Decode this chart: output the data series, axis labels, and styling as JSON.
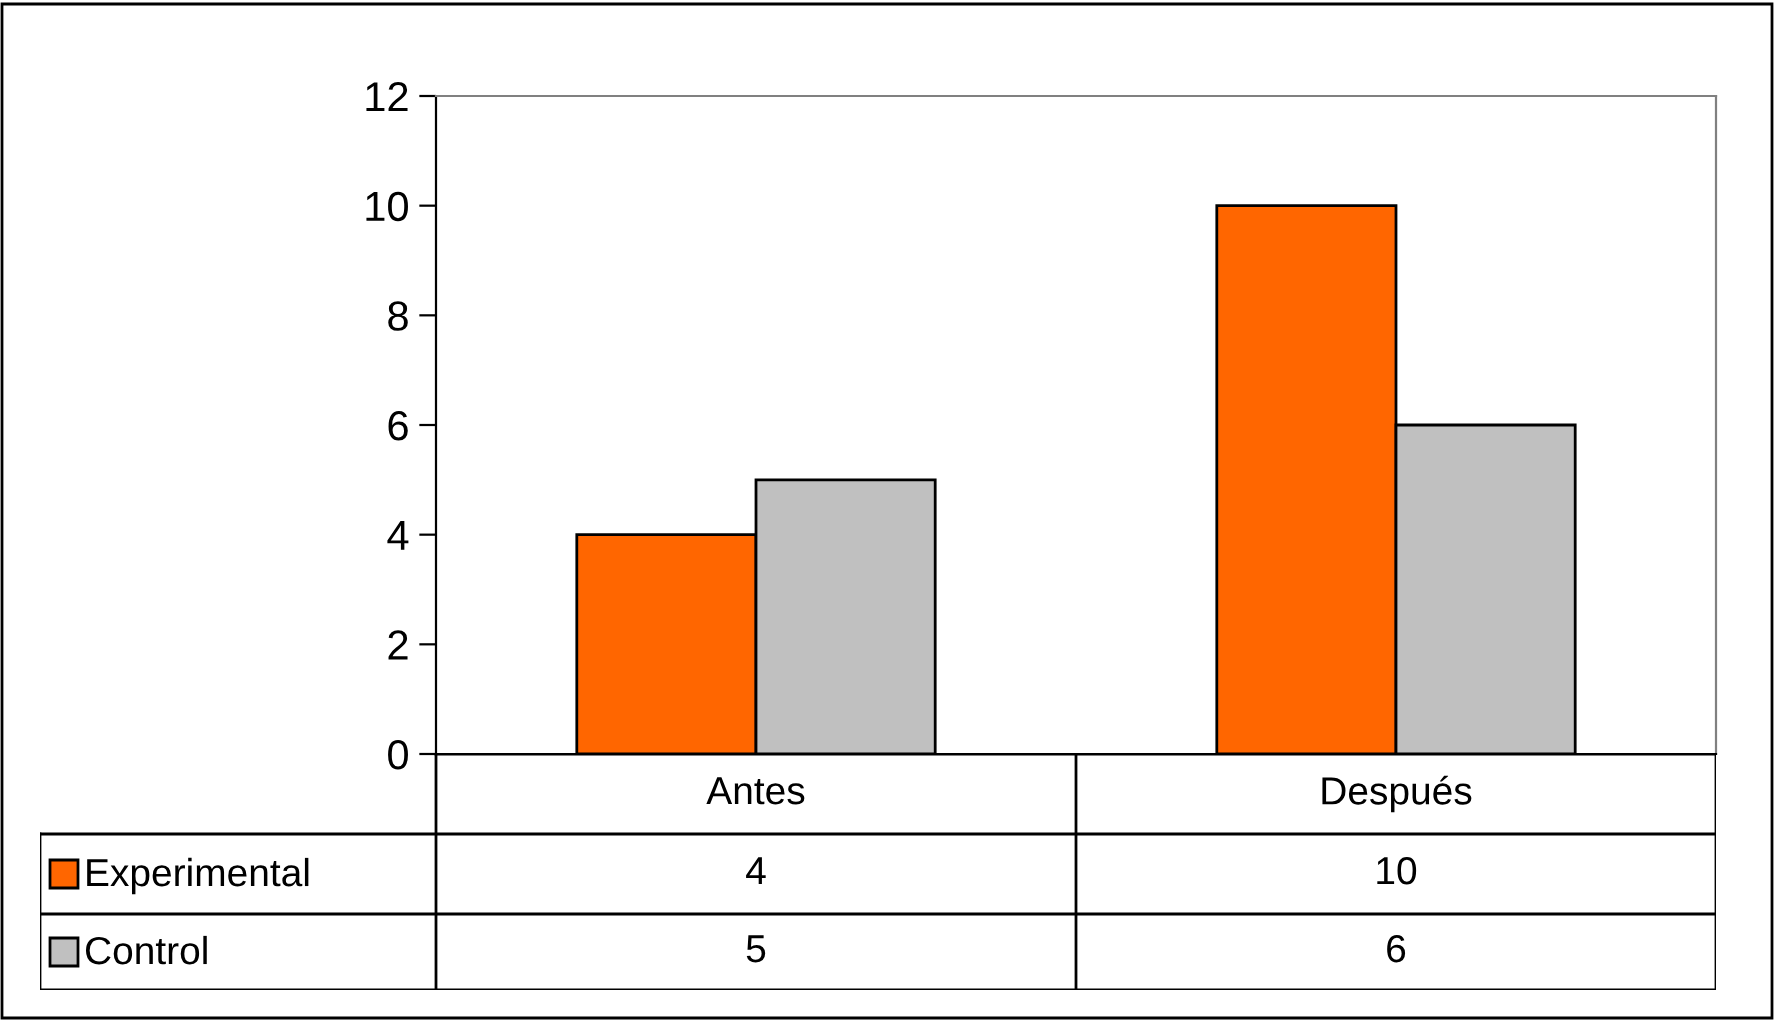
{
  "chart_data": {
    "type": "bar",
    "categories": [
      "Antes",
      "Después"
    ],
    "series": [
      {
        "name": "Experimental",
        "color": "#ff6600",
        "values": [
          4,
          10
        ]
      },
      {
        "name": "Control",
        "color": "#c0c0c0",
        "values": [
          5,
          6
        ]
      }
    ],
    "ylim": [
      0,
      12
    ],
    "yticks": [
      0,
      2,
      4,
      6,
      8,
      10,
      12
    ],
    "grid": false,
    "legend": "bottom",
    "data_labels": true
  }
}
